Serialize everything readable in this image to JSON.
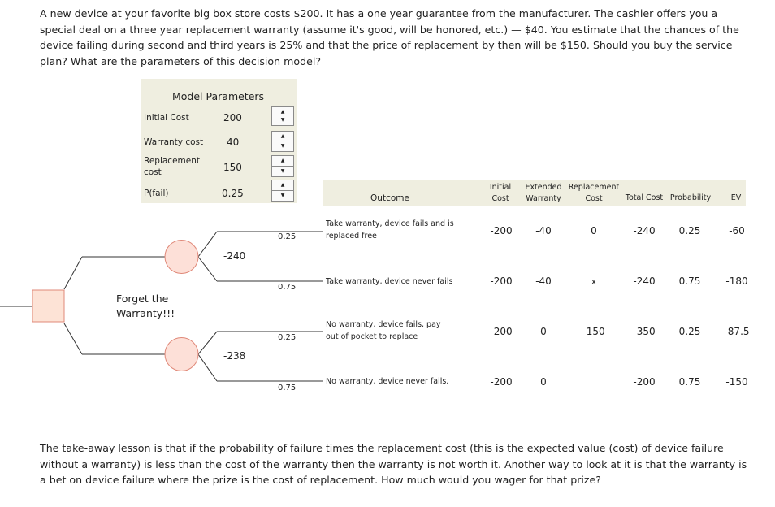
{
  "problem_text": "A new device at your favorite big box store costs $200. It has a one year guarantee from the manufacturer. The cashier offers you a special deal on a three year replacement warranty (assume it's good, will be honored, etc.) — $40. You estimate that the chances of the device failing during second and third years is 25% and that the price of replacement by then will be $150. Should you buy the service plan? What are the parameters of this decision model?",
  "lesson_text": "The take-away lesson is that if the probability of failure times the replacement cost (this is the expected value (cost) of device failure without a warranty) is less than the cost of the warranty then the warranty is not worth it.  Another way to look at it is that the warranty is a bet on device failure where the prize is the cost of replacement.  How much would you wager for that prize?",
  "params": {
    "title": "Model Parameters",
    "initial_cost_label": "Initial Cost",
    "initial_cost_value": "200",
    "warranty_cost_label": "Warranty cost",
    "warranty_cost_value": "40",
    "replacement_label_1": "Replacement",
    "replacement_label_2": "cost",
    "replacement_value": "150",
    "pfail_label": "P(fail)",
    "pfail_value": "0.25"
  },
  "tree": {
    "decision_label_1": "Forget the",
    "decision_label_2": "Warranty!!!",
    "node_top_value": "-240",
    "node_bottom_value": "-238",
    "prob_1": "0.25",
    "prob_2": "0.75",
    "prob_3": "0.25",
    "prob_4": "0.75"
  },
  "table": {
    "headers": {
      "outcome": "Outcome",
      "initial_1": "Initial",
      "initial_2": "Cost",
      "extended_1": "Extended",
      "extended_2": "Warranty",
      "replacement_1": "Replacement",
      "replacement_2": "Cost",
      "total": "Total Cost",
      "probability": "Probability",
      "ev": "EV"
    },
    "rows": [
      {
        "outcome_1": "Take warranty, device fails and is",
        "outcome_2": "replaced free",
        "initial": "-200",
        "extended": "-40",
        "replacement": "0",
        "total": "-240",
        "probability": "0.25",
        "ev": "-60"
      },
      {
        "outcome_1": "Take warranty, device never fails",
        "outcome_2": "",
        "initial": "-200",
        "extended": "-40",
        "replacement": "x",
        "total": "-240",
        "probability": "0.75",
        "ev": "-180"
      },
      {
        "outcome_1": "No warranty, device fails, pay",
        "outcome_2": "out of pocket to replace",
        "initial": "-200",
        "extended": "0",
        "replacement": "-150",
        "total": "-350",
        "probability": "0.25",
        "ev": "-87.5"
      },
      {
        "outcome_1": "No warranty, device never fails.",
        "outcome_2": "",
        "initial": "-200",
        "extended": "0",
        "replacement": "",
        "total": "-200",
        "probability": "0.75",
        "ev": "-150"
      }
    ]
  },
  "colors": {
    "panel_bg": "#efeee0",
    "node_fill": "#fde0d8",
    "node_stroke": "#e08878",
    "decision_fill": "#fde3d6"
  }
}
